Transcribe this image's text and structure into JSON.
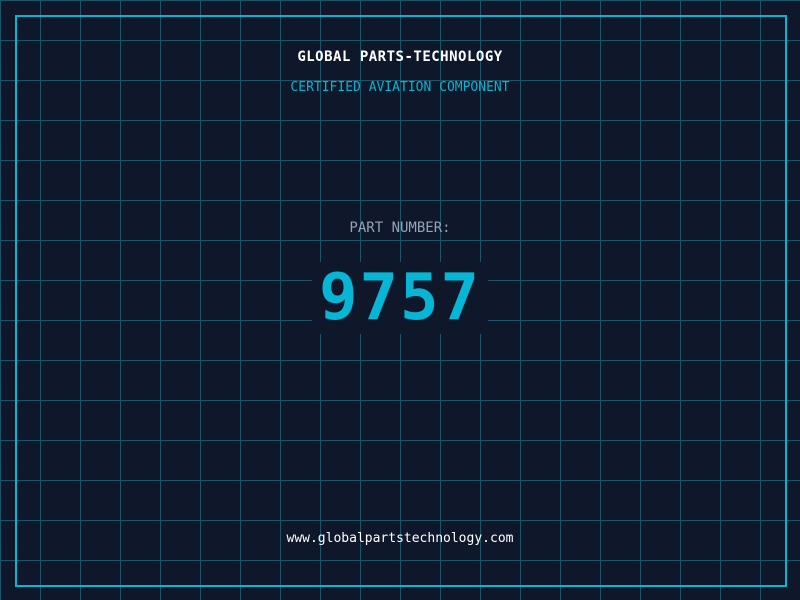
{
  "header": {
    "title": "GLOBAL PARTS-TECHNOLOGY",
    "subtitle": "CERTIFIED AVIATION COMPONENT"
  },
  "part": {
    "label": "PART NUMBER:",
    "number": "9757"
  },
  "footer": {
    "url": "www.globalpartstechnology.com"
  },
  "colors": {
    "background": "#0f172a",
    "accent": "#06b6d4",
    "grid": "#16566a",
    "label": "#94a3b8"
  }
}
